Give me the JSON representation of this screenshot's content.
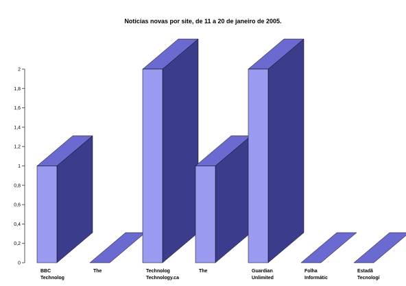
{
  "chart_data": {
    "type": "bar",
    "style": "3d",
    "title": "Notícias novas por site, de 11 a 20 de janeiro de 2005.",
    "categories": [
      [
        "BBC",
        "Technolog"
      ],
      [
        "The"
      ],
      [
        "Technolog",
        "Technology.ca"
      ],
      [
        "The"
      ],
      [
        "Guardian",
        "Unlimited"
      ],
      [
        "Folha",
        "Informátic"
      ],
      [
        "Estadã",
        "Tecnologi"
      ]
    ],
    "category_labels": [
      "BBC Technolog",
      "The",
      "Technolog Technology.ca",
      "The",
      "Guardian Unlimited",
      "Folha Informátic",
      "Estadã Tecnologi"
    ],
    "values": [
      1,
      0,
      2,
      1,
      2,
      0,
      0
    ],
    "ylim": [
      0,
      2
    ],
    "yticks": [
      "0",
      "0,2",
      "0,4",
      "0,6",
      "0,8",
      "1",
      "1,2",
      "1,4",
      "1,6",
      "1,8",
      "2"
    ],
    "grid": false,
    "legend": "none",
    "colors": {
      "front": "#9a9af0",
      "side": "#3c3c8c",
      "top": "#6a6ad0",
      "outline": "#000000",
      "axis": "#555555"
    }
  }
}
